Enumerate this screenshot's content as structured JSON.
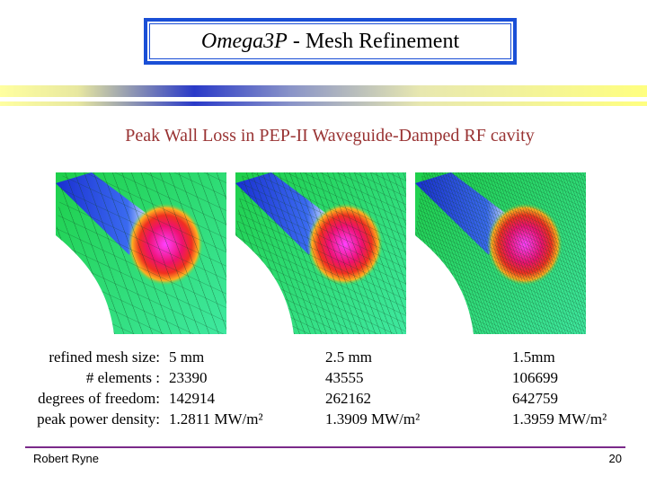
{
  "title": {
    "italic": "Omega3P",
    "rest": "- Mesh Refinement"
  },
  "subtitle": "Peak Wall Loss in PEP-II Waveguide-Damped RF cavity",
  "table": {
    "labels": [
      "refined mesh size:",
      "# elements :",
      "degrees of freedom:",
      "peak power density:"
    ],
    "columns": [
      [
        "5 mm",
        "23390",
        "142914",
        "1.2811 MW/m²"
      ],
      [
        "2.5 mm",
        "43555",
        "262162",
        "1.3909 MW/m²"
      ],
      [
        "1.5mm",
        "106699",
        "642759",
        "1.3959 MW/m²"
      ]
    ]
  },
  "footer": {
    "author": "Robert Ryne",
    "page": "20"
  }
}
